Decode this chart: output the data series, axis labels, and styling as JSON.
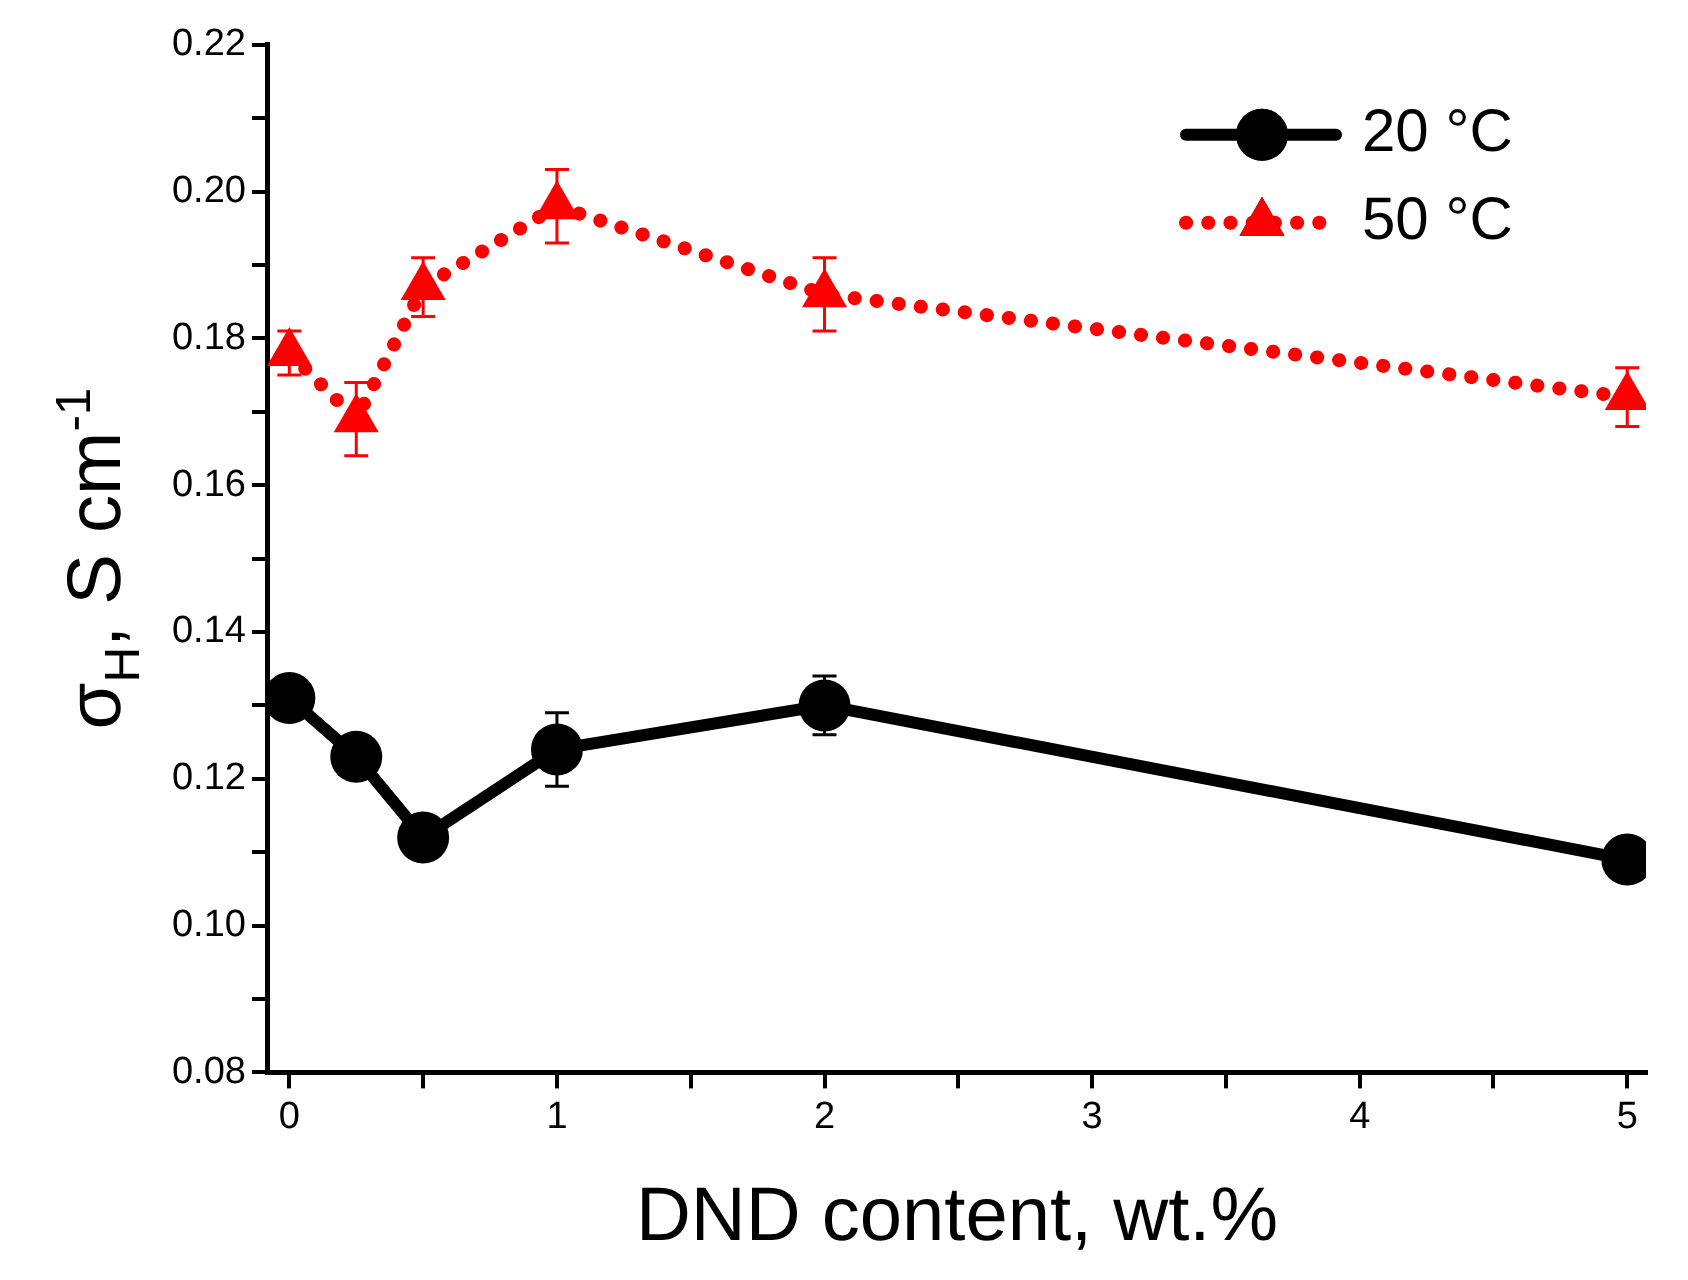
{
  "chart_data": {
    "type": "line",
    "xlabel": "DND content, wt.%",
    "ylabel": "σ$_{H}$, S cm$^{-1}$",
    "x": [
      0,
      0.25,
      0.5,
      1,
      2,
      5
    ],
    "series": [
      {
        "name": "20 °C",
        "color": "#000000",
        "values": [
          0.131,
          0.123,
          0.112,
          0.124,
          0.13,
          0.109
        ],
        "errors": [
          null,
          null,
          null,
          0.005,
          0.004,
          null
        ],
        "marker": "circle",
        "line_style": "solid"
      },
      {
        "name": "50 °C",
        "color": "#ff0000",
        "values": [
          0.178,
          0.169,
          0.187,
          0.198,
          0.186,
          0.172
        ],
        "errors": [
          0.003,
          0.005,
          0.004,
          0.005,
          0.005,
          0.004
        ],
        "marker": "triangle",
        "line_style": "dotted"
      }
    ],
    "xlim": [
      -0.08,
      5.07
    ],
    "ylim": [
      0.08,
      0.22
    ],
    "xticks": [
      0,
      {
        "value": 0.5,
        "label": null
      },
      1,
      {
        "value": 1.5,
        "label": null
      },
      2,
      {
        "value": 2.5,
        "label": null
      },
      3,
      {
        "value": 3.5,
        "label": null
      },
      4,
      {
        "value": 4.5,
        "label": null
      },
      5
    ],
    "yticks": [
      {
        "value": 0.08,
        "label": "0.08"
      },
      {
        "value": 0.09,
        "label": null
      },
      {
        "value": 0.1,
        "label": "0.10"
      },
      {
        "value": 0.11,
        "label": null
      },
      {
        "value": 0.12,
        "label": "0.12"
      },
      {
        "value": 0.13,
        "label": null
      },
      {
        "value": 0.14,
        "label": "0.14"
      },
      {
        "value": 0.15,
        "label": null
      },
      {
        "value": 0.16,
        "label": "0.16"
      },
      {
        "value": 0.17,
        "label": null
      },
      {
        "value": 0.18,
        "label": "0.18"
      },
      {
        "value": 0.19,
        "label": null
      },
      {
        "value": 0.2,
        "label": "0.20"
      },
      {
        "value": 0.21,
        "label": null
      },
      {
        "value": 0.22,
        "label": "0.22"
      }
    ],
    "grid": false,
    "legend": "top right"
  }
}
